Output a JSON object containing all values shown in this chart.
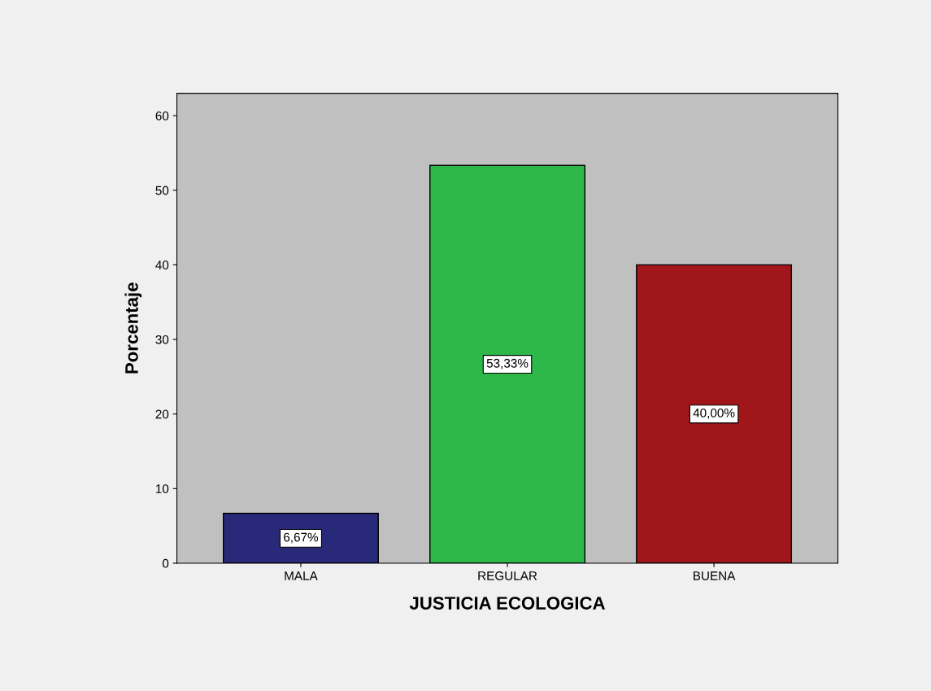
{
  "chart_data": {
    "type": "bar",
    "xlabel": "JUSTICIA ECOLOGICA",
    "ylabel": "Porcentaje",
    "categories": [
      "MALA",
      "REGULAR",
      "BUENA"
    ],
    "values": [
      6.67,
      53.33,
      40.0
    ],
    "colors": [
      "#29297a",
      "#2eb84a",
      "#a0161a"
    ],
    "value_labels": [
      "6,67%",
      "53,33%",
      "40,00%"
    ],
    "ylim": [
      0,
      63
    ],
    "yticks": [
      0,
      10,
      20,
      30,
      40,
      50,
      60
    ],
    "grid": false
  }
}
